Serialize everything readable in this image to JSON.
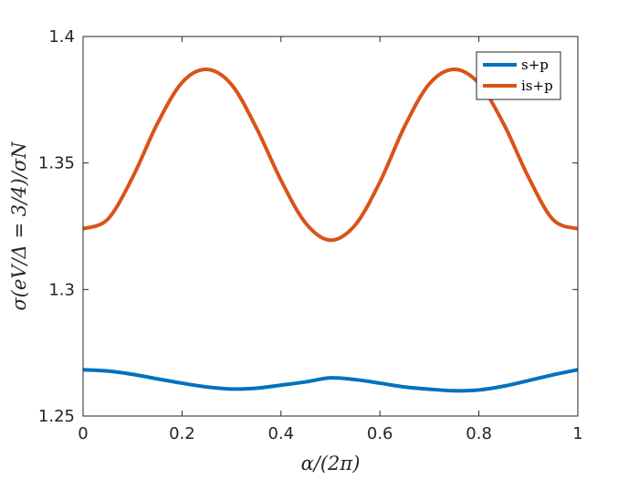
{
  "chart_data": {
    "type": "line",
    "title": "",
    "xlabel": "α/(2π)",
    "ylabel": "σ(eV/Δ = 3/4)/σN",
    "xlim": [
      0,
      1
    ],
    "ylim": [
      1.25,
      1.4
    ],
    "x_ticks": [
      "0",
      "0.2",
      "0.4",
      "0.6",
      "0.8",
      "1"
    ],
    "y_ticks": [
      "1.25",
      "1.3",
      "1.35",
      "1.4"
    ],
    "grid": false,
    "legend_position": "top-right",
    "x": [
      0,
      0.05,
      0.1,
      0.15,
      0.2,
      0.25,
      0.3,
      0.35,
      0.4,
      0.45,
      0.5,
      0.55,
      0.6,
      0.65,
      0.7,
      0.75,
      0.8,
      0.85,
      0.9,
      0.95,
      1
    ],
    "series": [
      {
        "name": "s+p",
        "color": "#0072BD",
        "values": [
          1.2683,
          1.2678,
          1.2665,
          1.2647,
          1.263,
          1.2615,
          1.2607,
          1.261,
          1.2622,
          1.2635,
          1.2651,
          1.2644,
          1.263,
          1.2615,
          1.2606,
          1.26,
          1.2603,
          1.2618,
          1.264,
          1.2663,
          1.2683
        ]
      },
      {
        "name": "is+p",
        "color": "#D95319",
        "values": [
          1.324,
          1.3278,
          1.3443,
          1.3655,
          1.3818,
          1.387,
          1.381,
          1.364,
          1.3432,
          1.3262,
          1.3195,
          1.3255,
          1.3425,
          1.3645,
          1.3813,
          1.387,
          1.3815,
          1.3655,
          1.3445,
          1.3276,
          1.324
        ]
      }
    ]
  }
}
